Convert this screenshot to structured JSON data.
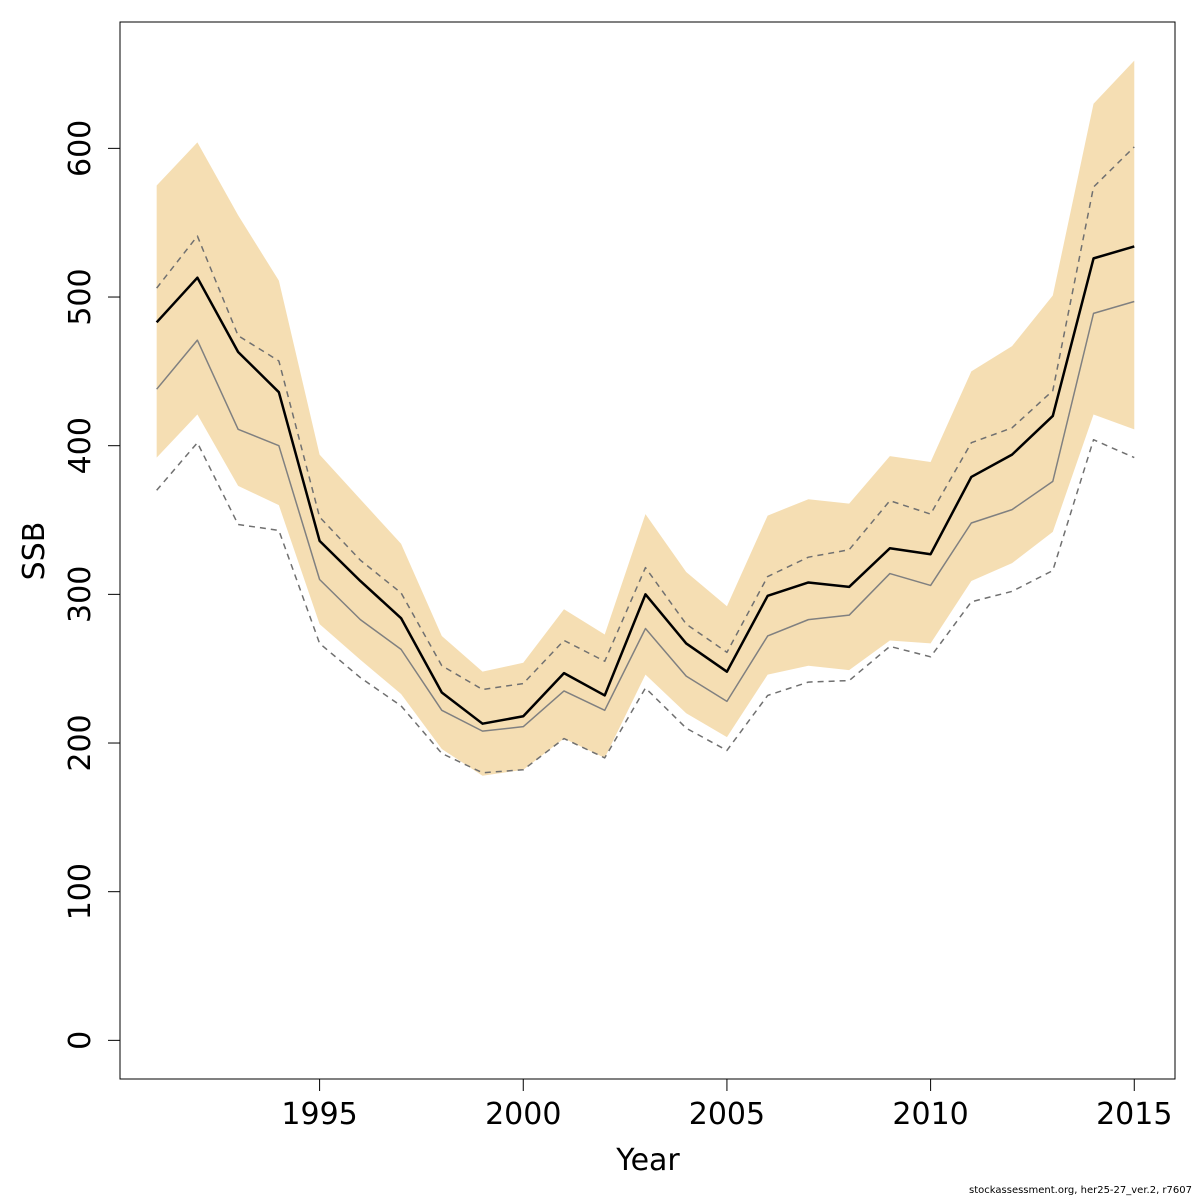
{
  "chart_data": {
    "type": "area",
    "title": "",
    "xlabel": "Year",
    "ylabel": "SSB",
    "xlim": [
      1990.1,
      2016.0
    ],
    "ylim": [
      -26,
      685
    ],
    "x_ticks": [
      1995,
      2000,
      2005,
      2010,
      2015
    ],
    "y_ticks": [
      0,
      100,
      200,
      300,
      400,
      500,
      600
    ],
    "grid": false,
    "legend": "none",
    "colors": {
      "band": "#f5deb3",
      "estimate": "#000000",
      "previous": "#808080",
      "previous_bounds": "#707070"
    },
    "x": [
      1991,
      1992,
      1993,
      1994,
      1995,
      1996,
      1997,
      1998,
      1999,
      2000,
      2001,
      2002,
      2003,
      2004,
      2005,
      2006,
      2007,
      2008,
      2009,
      2010,
      2011,
      2012,
      2013,
      2014,
      2015
    ],
    "series": [
      {
        "role": "band_upper",
        "values": [
          575,
          604,
          555,
          511,
          394,
          364,
          334,
          272,
          248,
          254,
          290,
          273,
          354,
          315,
          292,
          353,
          364,
          361,
          393,
          389,
          450,
          467,
          501,
          630,
          659
        ]
      },
      {
        "role": "band_lower",
        "values": [
          392,
          421,
          373,
          360,
          280,
          256,
          233,
          196,
          178,
          182,
          203,
          190,
          246,
          220,
          204,
          246,
          252,
          249,
          269,
          267,
          309,
          321,
          342,
          421,
          411
        ]
      },
      {
        "role": "estimate",
        "values": [
          483,
          513,
          463,
          436,
          336,
          309,
          284,
          234,
          213,
          218,
          247,
          232,
          300,
          267,
          248,
          299,
          308,
          305,
          331,
          327,
          379,
          394,
          420,
          526,
          534
        ]
      },
      {
        "role": "previous",
        "values": [
          438,
          471,
          411,
          400,
          310,
          283,
          263,
          222,
          208,
          211,
          235,
          222,
          277,
          245,
          228,
          272,
          283,
          286,
          314,
          306,
          348,
          357,
          376,
          489,
          497
        ]
      },
      {
        "role": "previous_upper",
        "values": [
          506,
          541,
          474,
          457,
          352,
          323,
          301,
          252,
          236,
          240,
          269,
          255,
          318,
          280,
          261,
          312,
          325,
          330,
          363,
          354,
          402,
          412,
          437,
          574,
          601
        ]
      },
      {
        "role": "previous_lower",
        "values": [
          370,
          402,
          347,
          343,
          267,
          244,
          225,
          193,
          180,
          182,
          203,
          190,
          237,
          210,
          195,
          232,
          241,
          242,
          265,
          258,
          295,
          302,
          316,
          404,
          392
        ]
      }
    ]
  },
  "footer": {
    "credit": "stockassessment.org, her25-27_ver.2, r7607"
  }
}
